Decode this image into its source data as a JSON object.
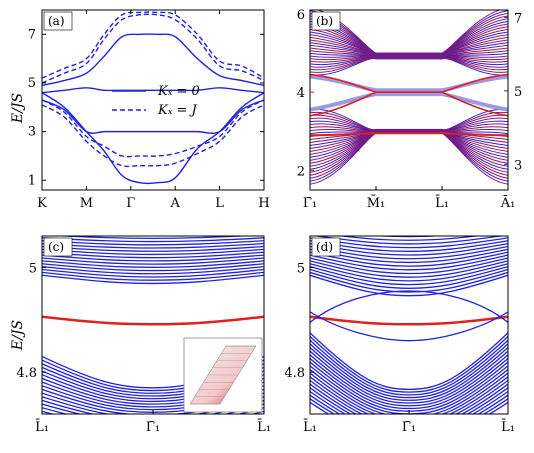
{
  "colors": {
    "blue": "#2222dd",
    "red": "#e0201c",
    "magenta": "#8a1a6e",
    "light": "#9a9ae8",
    "right_axis": "#2020e0",
    "left_axis": "#e0201c"
  },
  "y_axis_title": "E/JS",
  "panel_labels": {
    "a": "(a)",
    "b": "(b)",
    "c": "(c)",
    "d": "(d)"
  },
  "chart_data": [
    {
      "panel": "a",
      "type": "line",
      "x_ticks": [
        "K",
        "M",
        "Γ",
        "A",
        "L",
        "H"
      ],
      "y_ticks": [
        "1",
        "3",
        "5",
        "7"
      ],
      "ylim": [
        0.6,
        8.0
      ],
      "legend": [
        {
          "label": "K_x = 0",
          "style": "solid"
        },
        {
          "label": "K_x = J",
          "style": "dashed"
        }
      ],
      "series": [
        {
          "name": "K_x = 0",
          "style": "solid",
          "x": [
            0,
            0.5,
            1,
            1.4,
            1.8,
            2.2,
            2.6,
            3,
            3.5,
            4,
            4.5,
            5
          ],
          "y": [
            4.9,
            5.1,
            5.4,
            6.1,
            6.9,
            7.0,
            7.0,
            6.9,
            6.0,
            5.3,
            5.1,
            4.9
          ]
        },
        {
          "name": "K_x = 0",
          "style": "solid",
          "x": [
            0,
            0.5,
            1,
            1.4,
            1.8,
            2.2,
            2.6,
            3,
            3.5,
            4,
            4.5,
            5
          ],
          "y": [
            4.6,
            4.7,
            4.8,
            4.7,
            4.7,
            4.7,
            4.7,
            4.7,
            4.7,
            4.8,
            4.7,
            4.6
          ]
        },
        {
          "name": "K_x = 0",
          "style": "solid",
          "x": [
            0,
            0.5,
            1,
            1.4,
            1.8,
            2.2,
            2.6,
            3,
            3.5,
            4,
            4.5,
            5
          ],
          "y": [
            4.6,
            4.0,
            3.0,
            2.2,
            1.2,
            0.9,
            0.9,
            1.1,
            2.3,
            3.0,
            4.0,
            4.6
          ]
        },
        {
          "name": "K_x = 0",
          "style": "solid",
          "x": [
            0,
            0.5,
            1,
            1.4,
            1.8,
            2.2,
            2.6,
            3,
            3.5,
            4,
            4.5,
            5
          ],
          "y": [
            4.3,
            3.9,
            3.0,
            3.0,
            3.0,
            3.0,
            3.0,
            3.0,
            3.0,
            3.0,
            3.9,
            4.3
          ]
        },
        {
          "name": "K_x = J",
          "style": "dashed",
          "x": [
            0,
            0.5,
            1,
            1.4,
            1.8,
            2.2,
            2.6,
            3,
            3.5,
            4,
            4.5,
            5
          ],
          "y": [
            5.0,
            5.4,
            5.8,
            6.8,
            7.6,
            7.8,
            7.8,
            7.6,
            6.8,
            5.7,
            5.5,
            5.1
          ]
        },
        {
          "name": "K_x = J",
          "style": "dashed",
          "x": [
            0,
            0.5,
            1,
            1.4,
            1.8,
            2.2,
            2.6,
            3,
            3.5,
            4,
            4.5,
            5
          ],
          "y": [
            5.2,
            5.6,
            6.0,
            7.0,
            7.8,
            7.9,
            7.9,
            7.8,
            7.0,
            5.9,
            5.7,
            5.2
          ]
        },
        {
          "name": "K_x = J",
          "style": "dashed",
          "x": [
            0,
            0.5,
            1,
            1.4,
            1.8,
            2.2,
            2.6,
            3,
            3.5,
            4,
            4.5,
            5
          ],
          "y": [
            4.1,
            3.6,
            2.6,
            2.0,
            1.6,
            1.6,
            1.6,
            1.7,
            2.1,
            2.6,
            3.6,
            4.1
          ]
        },
        {
          "name": "K_x = J",
          "style": "dashed",
          "x": [
            0,
            0.5,
            1,
            1.4,
            1.8,
            2.2,
            2.6,
            3,
            3.5,
            4,
            4.5,
            5
          ],
          "y": [
            4.3,
            3.8,
            2.8,
            2.4,
            2.0,
            2.0,
            2.0,
            2.1,
            2.4,
            2.8,
            3.8,
            4.3
          ]
        }
      ]
    },
    {
      "panel": "b",
      "type": "line",
      "x_ticks": [
        "Γ̄₁",
        "M̄₁",
        "L̄₁",
        "Ā₁"
      ],
      "y_ticks_left": [
        "2",
        "4",
        "6"
      ],
      "y_ticks_right": [
        "3",
        "5",
        "7"
      ],
      "ylim": [
        1.5,
        6.1
      ],
      "description_series": [
        {
          "name": "upper bulk bands",
          "x": [
            0,
            1.0,
            2.0,
            3.0
          ],
          "y_range": [
            4.4,
            6.0
          ]
        },
        {
          "name": "lower bulk bands",
          "x": [
            0,
            1.0,
            2.0,
            3.0
          ],
          "y_range": [
            1.6,
            3.6
          ]
        }
      ]
    },
    {
      "panel": "c",
      "type": "line",
      "x_ticks": [
        "L̄₁",
        "Γ̄₁",
        "L̄₁"
      ],
      "y_ticks": [
        "4.8",
        "5"
      ],
      "ylim": [
        4.72,
        5.06
      ]
    },
    {
      "panel": "d",
      "type": "line",
      "x_ticks": [
        "L̄₁",
        "Γ̄₁",
        "L̄₁"
      ],
      "y_ticks": [
        "4.8",
        "5"
      ],
      "ylim": [
        4.72,
        5.06
      ]
    }
  ]
}
